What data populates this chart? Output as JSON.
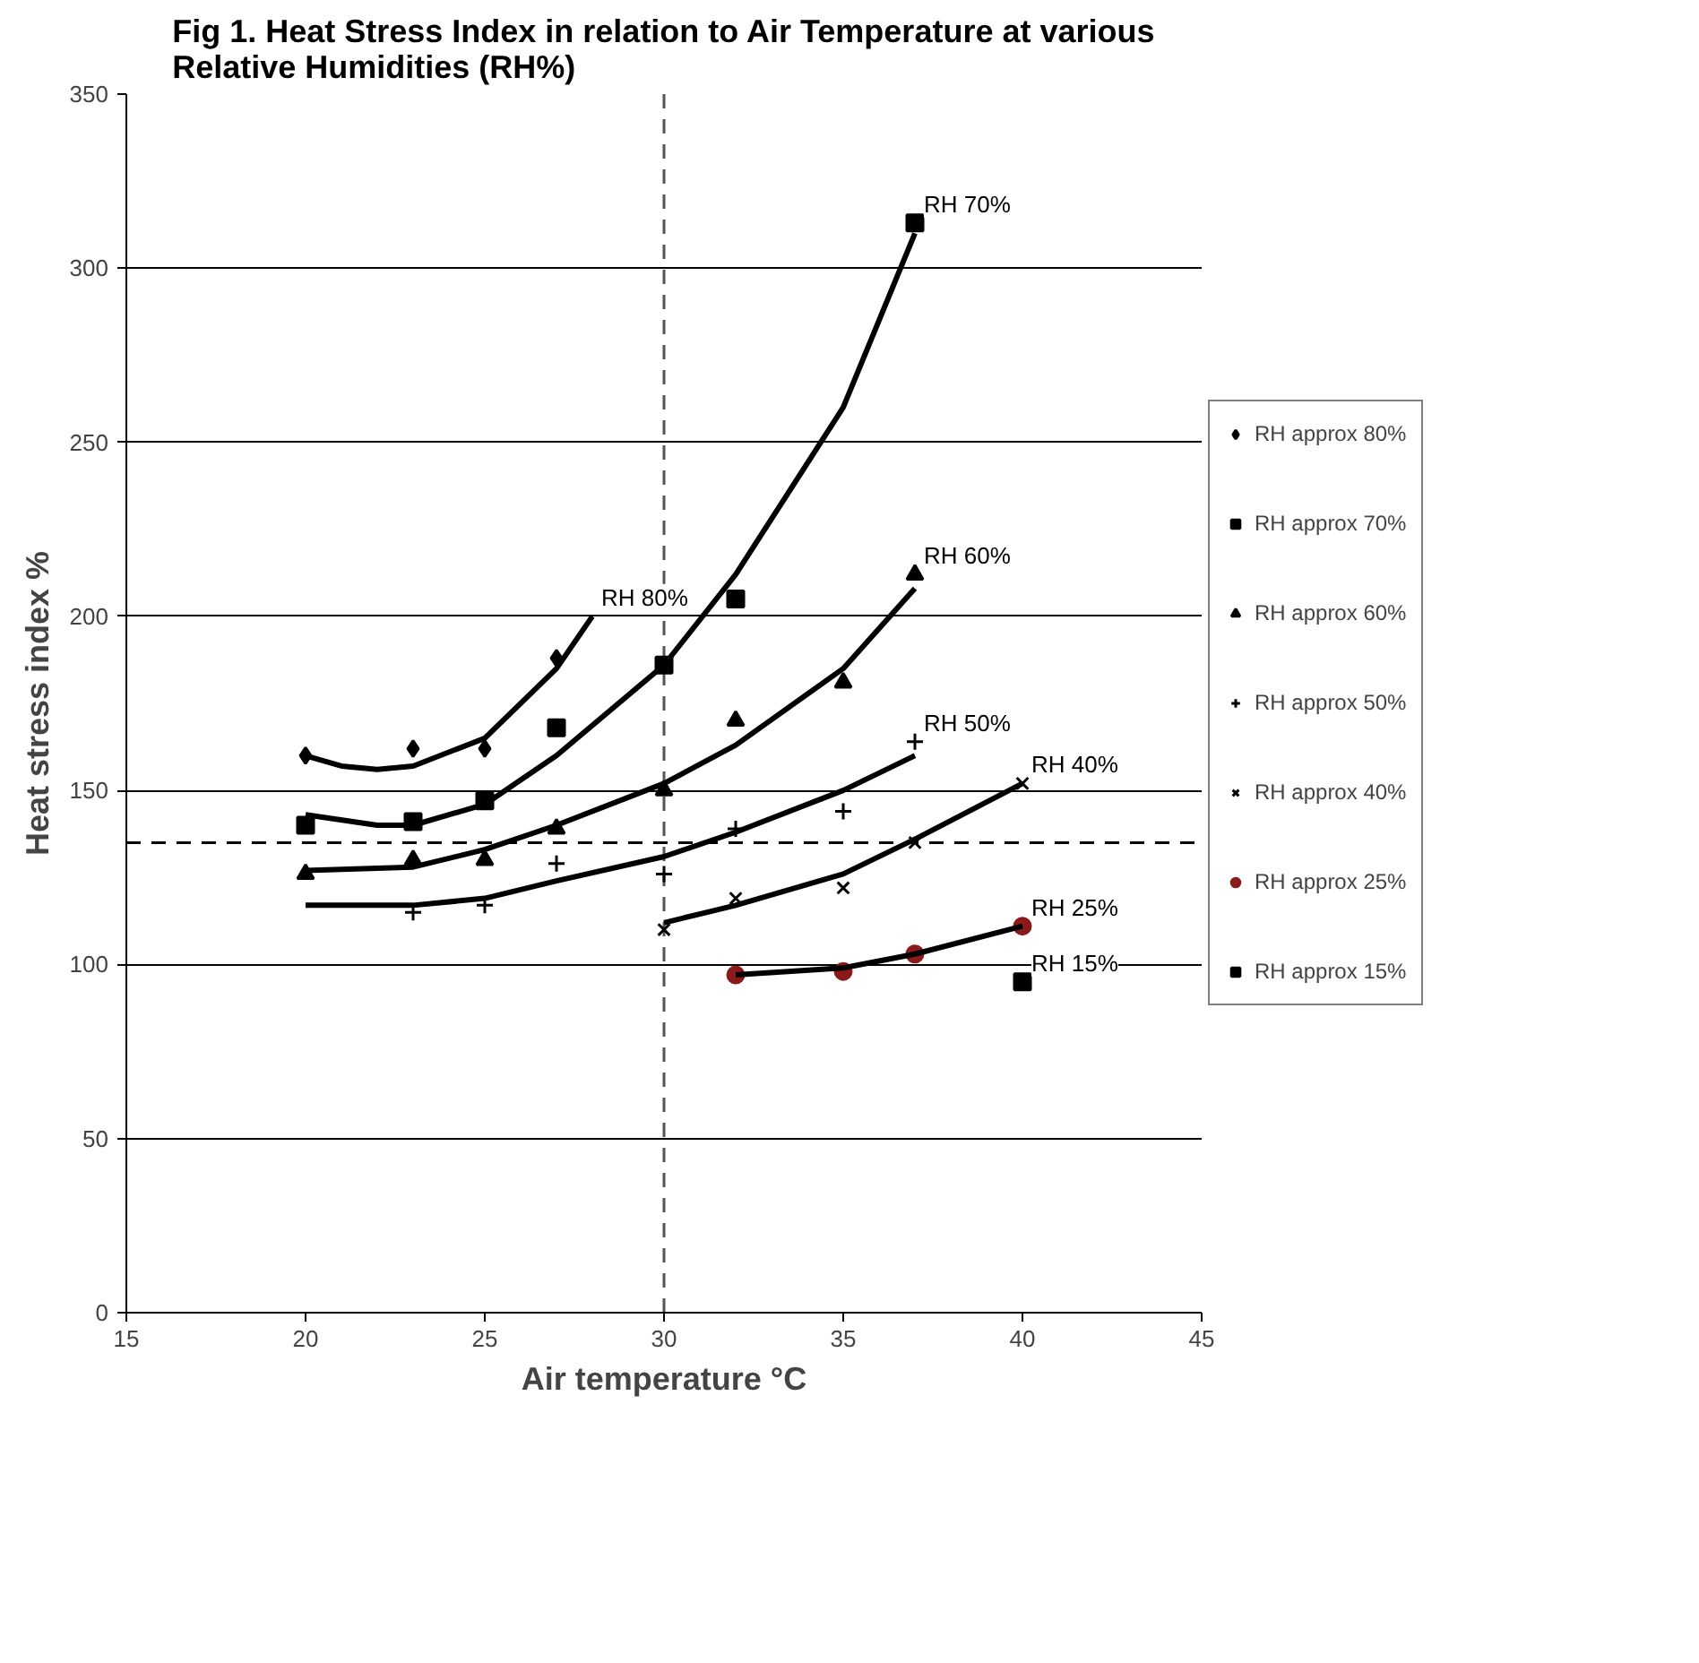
{
  "chart_data": {
    "type": "scatter",
    "title": "Fig 1. Heat Stress Index in relation to Air Temperature at various Relative Humidities (RH%)",
    "xlabel": "Air temperature °C",
    "ylabel": "Heat stress index %",
    "xlim": [
      15,
      45
    ],
    "xticks": [
      15,
      20,
      25,
      30,
      35,
      40,
      45
    ],
    "ylim": [
      0,
      350
    ],
    "yticks": [
      0,
      50,
      100,
      150,
      200,
      250,
      300,
      350
    ],
    "grid": "y",
    "legend": "right",
    "series": [
      {
        "name": "RH approx 80%",
        "color": "#000000",
        "marker": "diamond",
        "x": [
          20,
          23,
          25,
          27
        ],
        "values": [
          160,
          162,
          162,
          188
        ]
      },
      {
        "name": "RH approx 70%",
        "color": "#000000",
        "marker": "square",
        "x": [
          20,
          23,
          25,
          27,
          30,
          32,
          37
        ],
        "values": [
          140,
          141,
          147,
          168,
          186,
          205,
          313
        ]
      },
      {
        "name": "RH approx 60%",
        "color": "#000000",
        "marker": "triangle",
        "x": [
          20,
          23,
          25,
          27,
          30,
          32,
          35,
          37
        ],
        "values": [
          126,
          130,
          130,
          139,
          150,
          170,
          181,
          212
        ]
      },
      {
        "name": "RH approx 50%",
        "color": "#000000",
        "marker": "cross",
        "x": [
          23,
          25,
          27,
          30,
          32,
          35,
          37
        ],
        "values": [
          115,
          117,
          129,
          126,
          139,
          144,
          164
        ]
      },
      {
        "name": "RH approx 40%",
        "color": "#000000",
        "marker": "x",
        "x": [
          30,
          32,
          35,
          37,
          40
        ],
        "values": [
          110,
          119,
          122,
          135,
          152
        ]
      },
      {
        "name": "RH approx 25%",
        "color": "#8b1a1a",
        "marker": "circle",
        "x": [
          32,
          35,
          37,
          40
        ],
        "values": [
          97,
          98,
          103,
          111
        ]
      },
      {
        "name": "RH approx 15%",
        "color": "#000000",
        "marker": "square",
        "x": [
          40
        ],
        "values": [
          95
        ]
      },
      {
        "type": "line",
        "color": "#000000",
        "x": [
          20,
          21,
          22,
          23,
          25,
          27,
          28
        ],
        "values": [
          160,
          157,
          156,
          157,
          165,
          185,
          200
        ]
      },
      {
        "type": "line",
        "color": "#000000",
        "x": [
          20,
          22,
          23,
          25,
          27,
          30,
          32,
          35,
          37
        ],
        "values": [
          143,
          140,
          140,
          146,
          160,
          186,
          212,
          260,
          310
        ]
      },
      {
        "type": "line",
        "color": "#000000",
        "x": [
          20,
          23,
          25,
          27,
          30,
          32,
          35,
          37
        ],
        "values": [
          127,
          128,
          133,
          140,
          152,
          163,
          185,
          208
        ]
      },
      {
        "type": "line",
        "color": "#000000",
        "x": [
          20,
          23,
          25,
          27,
          30,
          32,
          35,
          37
        ],
        "values": [
          117,
          117,
          119,
          124,
          131,
          138,
          150,
          160
        ]
      },
      {
        "type": "line",
        "color": "#000000",
        "x": [
          30,
          32,
          35,
          37,
          40
        ],
        "values": [
          112,
          117,
          126,
          136,
          152
        ]
      },
      {
        "type": "line",
        "color": "#000000",
        "x": [
          32,
          35,
          37,
          40
        ],
        "values": [
          97,
          99,
          103,
          111
        ]
      }
    ],
    "ref_lines": [
      {
        "axis": "x",
        "value": 30,
        "line_style": "dashed",
        "color": "#555555"
      },
      {
        "axis": "y",
        "value": 135,
        "line_style": "dashed",
        "color": "#000000"
      }
    ],
    "annotations": [
      {
        "text": "RH 80%",
        "x": 28,
        "y": 200
      },
      {
        "text": "RH 70%",
        "x": 37,
        "y": 313
      },
      {
        "text": "RH 60%",
        "x": 37,
        "y": 212
      },
      {
        "text": "RH 50%",
        "x": 37,
        "y": 164
      },
      {
        "text": "RH 40%",
        "x": 40,
        "y": 152
      },
      {
        "text": "RH 25%",
        "x": 40,
        "y": 111
      },
      {
        "text": "RH 15%",
        "x": 40,
        "y": 95
      }
    ]
  }
}
